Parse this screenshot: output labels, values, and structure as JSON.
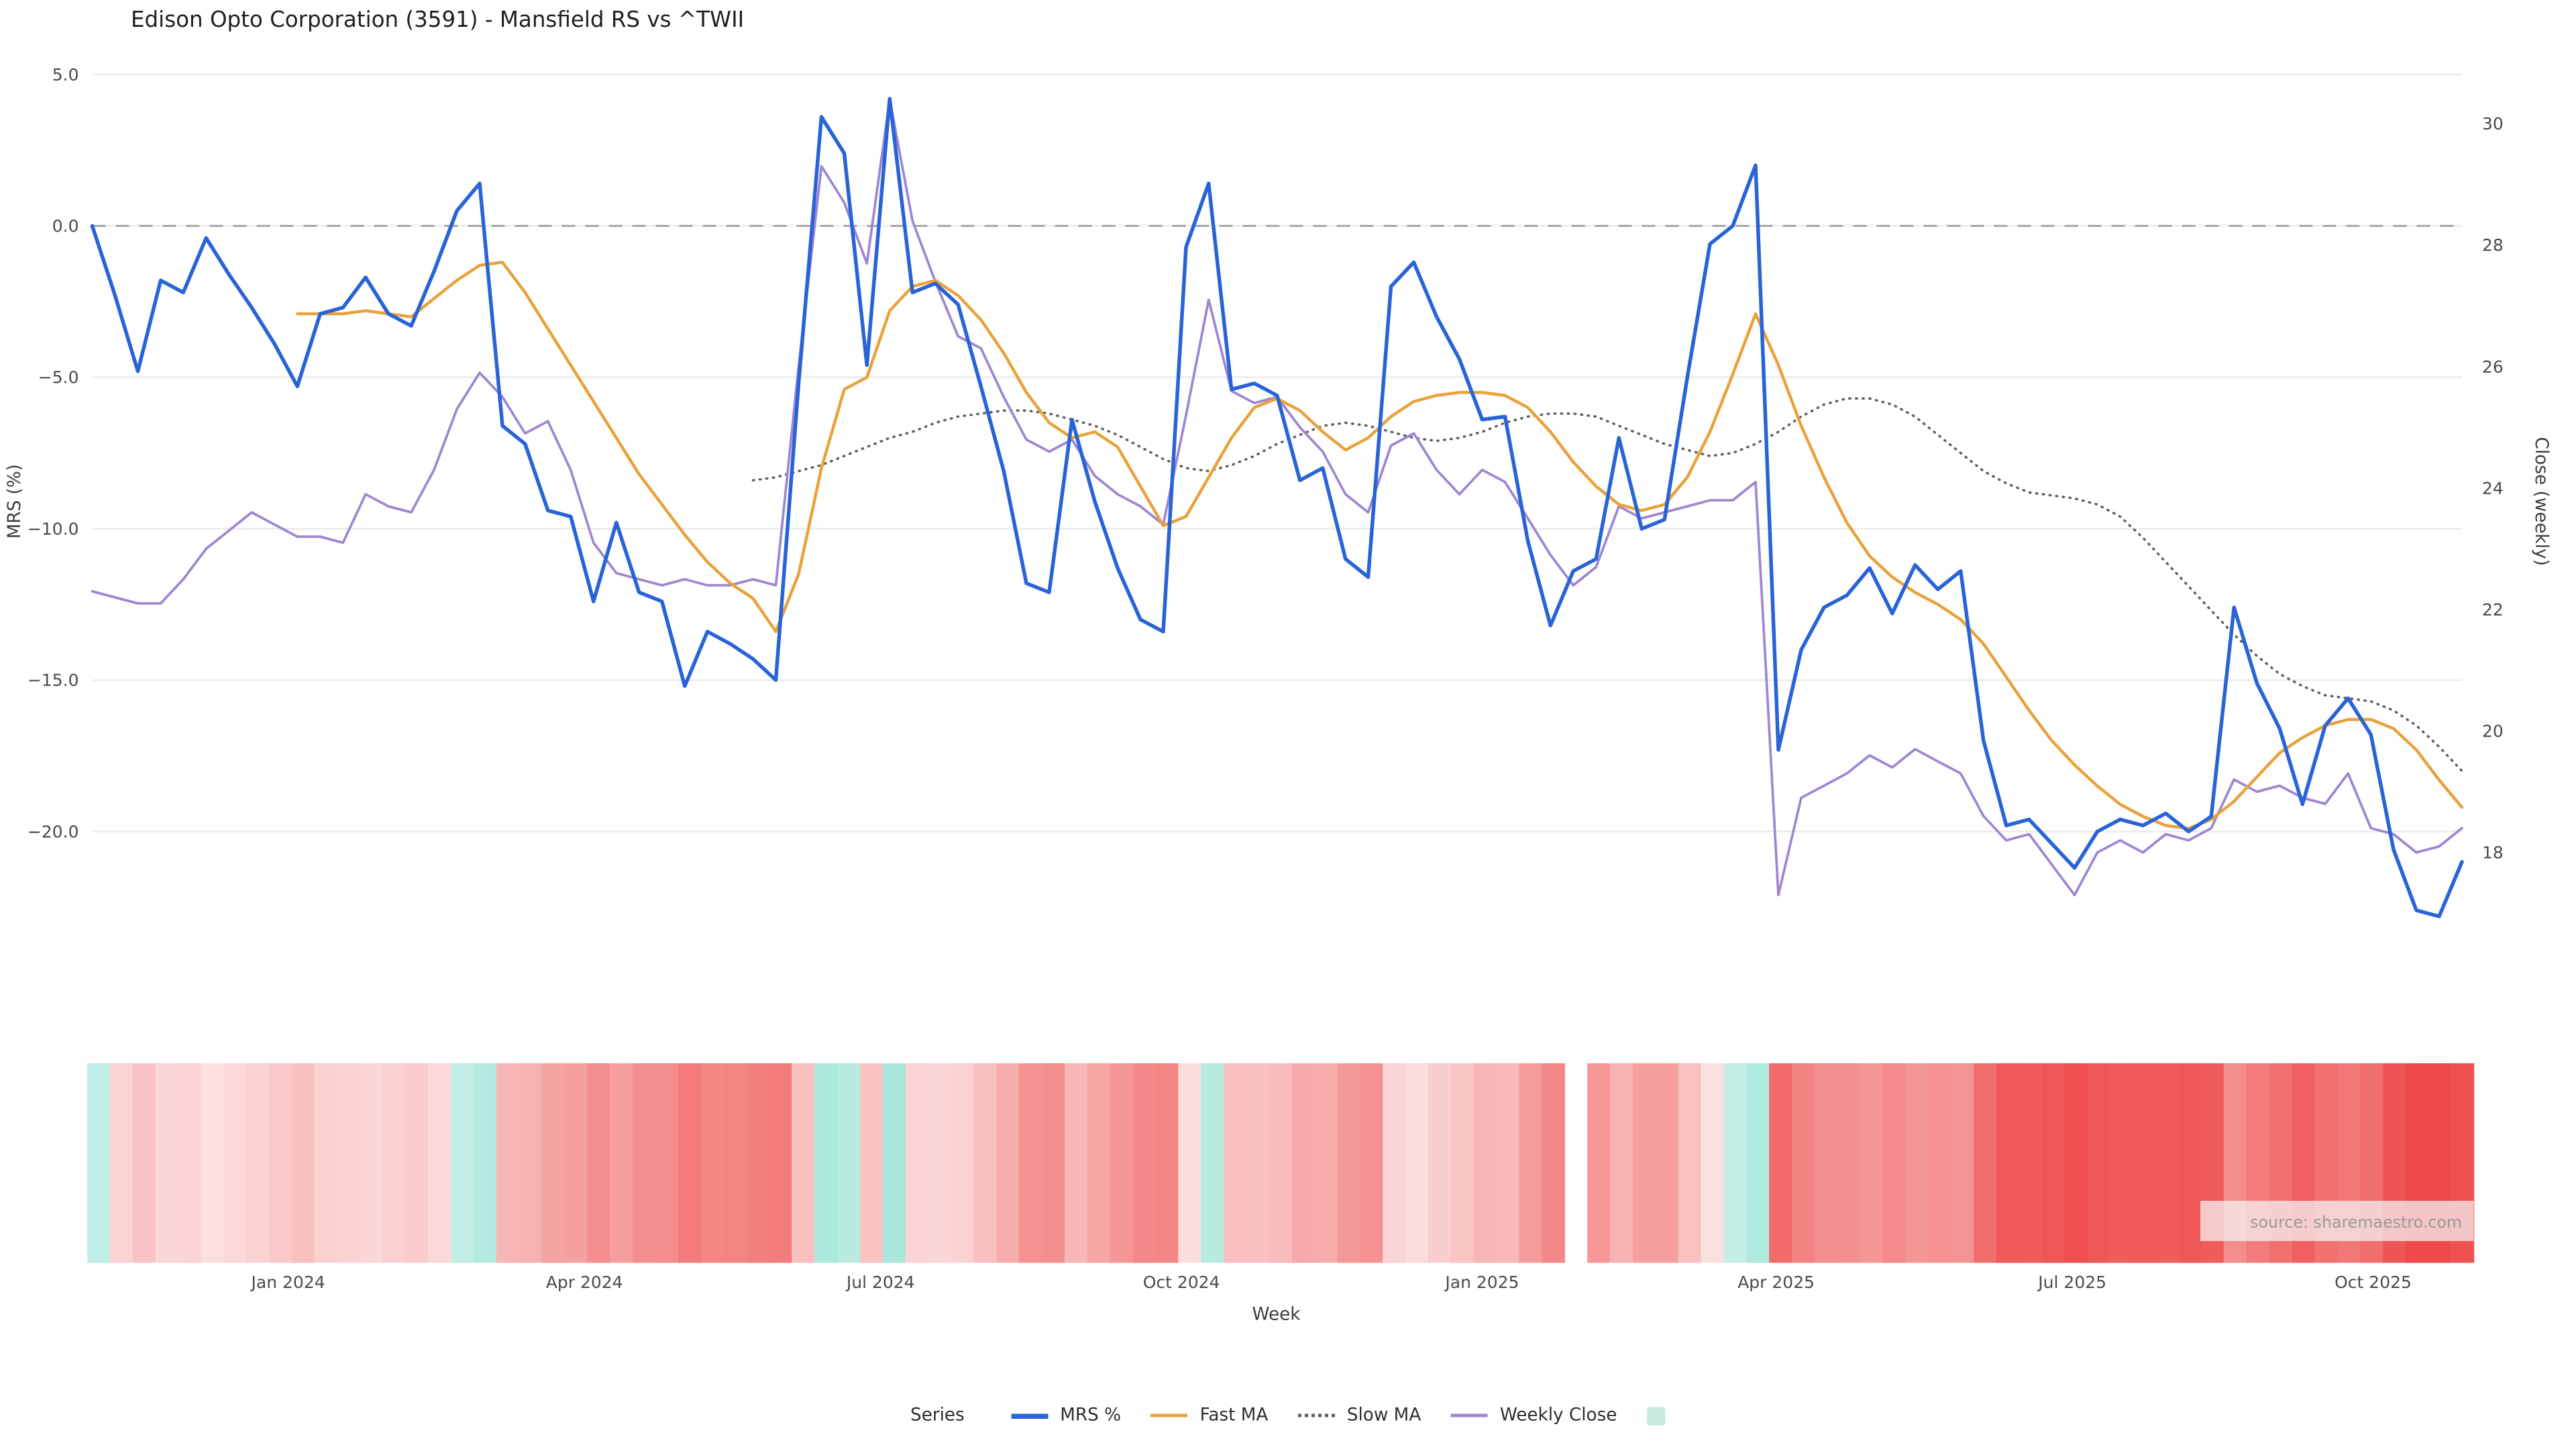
{
  "title": "Edison Opto Corporation (3591) - Mansfield RS vs ^TWII",
  "source_text": "source: sharemaestro.com",
  "axes": {
    "y_left": {
      "label": "MRS (%)",
      "ticks": [
        {
          "label": "5.0",
          "value": 5.0
        },
        {
          "label": "0.0",
          "value": 0.0
        },
        {
          "label": "−5.0",
          "value": -5.0
        },
        {
          "label": "−10.0",
          "value": -10.0
        },
        {
          "label": "−15.0",
          "value": -15.0
        },
        {
          "label": "−20.0",
          "value": -20.0
        }
      ]
    },
    "y_right": {
      "label": "Close (weekly)",
      "ticks": [
        {
          "label": "30",
          "value": 30
        },
        {
          "label": "28",
          "value": 28
        },
        {
          "label": "26",
          "value": 26
        },
        {
          "label": "24",
          "value": 24
        },
        {
          "label": "22",
          "value": 22
        },
        {
          "label": "20",
          "value": 20
        },
        {
          "label": "18",
          "value": 18
        }
      ]
    },
    "x": {
      "label": "Week",
      "ticks": [
        {
          "label": "Jan 2024",
          "week": 8.6
        },
        {
          "label": "Apr 2024",
          "week": 21.6
        },
        {
          "label": "Jul 2024",
          "week": 34.6
        },
        {
          "label": "Oct 2024",
          "week": 47.8
        },
        {
          "label": "Jan 2025",
          "week": 61.0
        },
        {
          "label": "Apr 2025",
          "week": 73.9
        },
        {
          "label": "Jul 2025",
          "week": 86.9
        },
        {
          "label": "Oct 2025",
          "week": 100.1
        }
      ]
    }
  },
  "legend": {
    "title": "Series",
    "items": [
      {
        "label": "MRS %",
        "style": "solid",
        "color": "#2963d8"
      },
      {
        "label": "Fast MA",
        "style": "solid",
        "color": "#e9a23b"
      },
      {
        "label": "Slow MA",
        "style": "dotted",
        "color": "#5f5f5f"
      },
      {
        "label": "Weekly Close",
        "style": "solid",
        "color": "#9f86d2"
      },
      {
        "label": "",
        "style": "swatch",
        "color": "#c7ebe0"
      }
    ]
  },
  "colors": {
    "grid": "#ebebeb",
    "zero_line": "#9e9e9e",
    "heat_red": "#ee4a4a",
    "heat_teal": "#63d4bd",
    "tick_text": "#4a4a4a",
    "axis_title_text": "#3d3d3d",
    "title_text": "#1f1f1f",
    "source_text_color": "#9a9a9a"
  },
  "chart_data": {
    "type": "line",
    "x_unit": "week-index",
    "xlim": [
      0,
      104
    ],
    "ylim_left": [
      -23.5,
      5.3
    ],
    "ylim_right": [
      16.6,
      30.96
    ],
    "zero_line": 0,
    "grid": true,
    "legend_position": "bottom-center",
    "series": [
      {
        "name": "MRS %",
        "axis": "left",
        "color": "#2963d8",
        "style": "solid",
        "width": 2.2,
        "values": [
          0.0,
          -2.3,
          -4.8,
          -1.8,
          -2.2,
          -0.4,
          -1.6,
          -2.7,
          -3.9,
          -5.3,
          -2.9,
          -2.7,
          -1.7,
          -2.9,
          -3.3,
          -1.5,
          0.5,
          1.4,
          -6.6,
          -7.2,
          -9.4,
          -9.6,
          -12.4,
          -9.8,
          -12.1,
          -12.4,
          -15.2,
          -13.4,
          -13.8,
          -14.3,
          -15.0,
          -5.2,
          3.6,
          2.4,
          -4.6,
          4.2,
          -2.2,
          -1.9,
          -2.6,
          -5.3,
          -8.1,
          -11.8,
          -12.1,
          -6.4,
          -9.1,
          -11.3,
          -13.0,
          -13.4,
          -0.7,
          1.4,
          -5.4,
          -5.2,
          -5.6,
          -8.4,
          -8.0,
          -11.0,
          -11.6,
          -2.0,
          -1.2,
          -3.0,
          -4.4,
          -6.4,
          -6.3,
          -10.4,
          -13.2,
          -11.4,
          -11.0,
          -7.0,
          -10.0,
          -9.7,
          -5.0,
          -0.6,
          0.0,
          2.0,
          -17.3,
          -14.0,
          -12.6,
          -12.2,
          -11.3,
          -12.8,
          -11.2,
          -12.0,
          -11.4,
          -17.0,
          -19.8,
          -19.6,
          -20.4,
          -21.2,
          -20.0,
          -19.6,
          -19.8,
          -19.4,
          -20.0,
          -19.5,
          -12.6,
          -15.1,
          -16.6,
          -19.1,
          -16.5,
          -15.6,
          -16.8,
          -20.6,
          -22.6,
          -22.8,
          -21.0
        ]
      },
      {
        "name": "Fast MA",
        "axis": "left",
        "color": "#e9a23b",
        "style": "solid",
        "width": 1.8,
        "values": [
          null,
          null,
          null,
          null,
          null,
          null,
          null,
          null,
          null,
          -2.9,
          -2.9,
          -2.9,
          -2.8,
          -2.9,
          -3.0,
          -2.4,
          -1.8,
          -1.3,
          -1.2,
          -2.2,
          -3.4,
          -4.6,
          -5.8,
          -7.0,
          -8.2,
          -9.2,
          -10.2,
          -11.1,
          -11.8,
          -12.3,
          -13.4,
          -11.5,
          -8.0,
          -5.4,
          -5.0,
          -2.8,
          -2.0,
          -1.8,
          -2.3,
          -3.1,
          -4.2,
          -5.5,
          -6.5,
          -7.0,
          -6.8,
          -7.3,
          -8.6,
          -9.9,
          -9.6,
          -8.3,
          -7.0,
          -6.0,
          -5.7,
          -6.1,
          -6.8,
          -7.4,
          -7.0,
          -6.3,
          -5.8,
          -5.6,
          -5.5,
          -5.5,
          -5.6,
          -6.0,
          -6.8,
          -7.8,
          -8.6,
          -9.2,
          -9.4,
          -9.2,
          -8.3,
          -6.8,
          -4.9,
          -2.9,
          -4.6,
          -6.6,
          -8.3,
          -9.8,
          -10.9,
          -11.6,
          -12.1,
          -12.5,
          -13.0,
          -13.8,
          -14.9,
          -16.0,
          -17.0,
          -17.8,
          -18.5,
          -19.1,
          -19.5,
          -19.8,
          -19.9,
          -19.6,
          -19.0,
          -18.2,
          -17.4,
          -16.9,
          -16.5,
          -16.3,
          -16.3,
          -16.6,
          -17.3,
          -18.3,
          -19.2
        ]
      },
      {
        "name": "Slow MA",
        "axis": "left",
        "color": "#5f5f5f",
        "style": "dotted",
        "width": 1.4,
        "values": [
          null,
          null,
          null,
          null,
          null,
          null,
          null,
          null,
          null,
          null,
          null,
          null,
          null,
          null,
          null,
          null,
          null,
          null,
          null,
          null,
          null,
          null,
          null,
          null,
          null,
          null,
          null,
          null,
          null,
          -8.4,
          -8.3,
          -8.1,
          -7.9,
          -7.6,
          -7.3,
          -7.0,
          -6.8,
          -6.5,
          -6.3,
          -6.2,
          -6.1,
          -6.1,
          -6.2,
          -6.4,
          -6.6,
          -6.9,
          -7.3,
          -7.7,
          -8.0,
          -8.1,
          -7.9,
          -7.6,
          -7.2,
          -6.9,
          -6.6,
          -6.5,
          -6.6,
          -6.8,
          -7.0,
          -7.1,
          -7.0,
          -6.8,
          -6.5,
          -6.3,
          -6.2,
          -6.2,
          -6.3,
          -6.6,
          -6.9,
          -7.2,
          -7.4,
          -7.6,
          -7.5,
          -7.2,
          -6.8,
          -6.3,
          -5.9,
          -5.7,
          -5.7,
          -5.9,
          -6.3,
          -6.9,
          -7.5,
          -8.1,
          -8.5,
          -8.8,
          -8.9,
          -9.0,
          -9.2,
          -9.6,
          -10.3,
          -11.1,
          -11.9,
          -12.7,
          -13.5,
          -14.2,
          -14.8,
          -15.2,
          -15.5,
          -15.6,
          -15.7,
          -16.0,
          -16.5,
          -17.2,
          -18.0
        ]
      },
      {
        "name": "Weekly Close",
        "axis": "right",
        "color": "#9f86d2",
        "style": "solid",
        "width": 1.5,
        "values": [
          22.3,
          22.2,
          22.1,
          22.1,
          22.5,
          23.0,
          23.3,
          23.6,
          23.4,
          23.2,
          23.2,
          23.1,
          23.9,
          23.7,
          23.6,
          24.3,
          25.3,
          25.9,
          25.5,
          24.9,
          25.1,
          24.3,
          23.1,
          22.6,
          22.5,
          22.4,
          22.5,
          22.4,
          22.4,
          22.5,
          22.4,
          26.0,
          29.3,
          28.7,
          27.7,
          30.4,
          28.4,
          27.4,
          26.5,
          26.3,
          25.5,
          24.8,
          24.6,
          24.8,
          24.2,
          23.9,
          23.7,
          23.4,
          25.2,
          27.1,
          25.6,
          25.4,
          25.5,
          25.0,
          24.6,
          23.9,
          23.6,
          24.7,
          24.9,
          24.3,
          23.9,
          24.3,
          24.1,
          23.5,
          22.9,
          22.4,
          22.7,
          23.7,
          23.5,
          23.6,
          23.7,
          23.8,
          23.8,
          24.1,
          17.3,
          18.9,
          19.1,
          19.3,
          19.6,
          19.4,
          19.7,
          19.5,
          19.3,
          18.6,
          18.2,
          18.3,
          17.8,
          17.3,
          18.0,
          18.2,
          18.0,
          18.3,
          18.2,
          18.4,
          19.2,
          19.0,
          19.1,
          18.9,
          18.8,
          19.3,
          18.4,
          18.3,
          18.0,
          18.1,
          18.4
        ]
      }
    ],
    "heatmap": {
      "description": "weekly signal strip under chart; positive=red intensity, negative=teal intensity, null=gap",
      "red": "#ee4a4a",
      "teal": "#63d4bd",
      "values": [
        -0.4,
        0.24,
        0.33,
        0.22,
        0.23,
        0.17,
        0.21,
        0.25,
        0.3,
        0.35,
        0.26,
        0.25,
        0.22,
        0.26,
        0.28,
        0.21,
        -0.4,
        -0.48,
        0.4,
        0.43,
        0.51,
        0.52,
        0.63,
        0.53,
        0.62,
        0.63,
        0.73,
        0.67,
        0.68,
        0.7,
        0.73,
        0.35,
        -0.52,
        -0.45,
        0.33,
        -0.55,
        0.23,
        0.22,
        0.25,
        0.35,
        0.46,
        0.6,
        0.62,
        0.4,
        0.5,
        0.58,
        0.65,
        0.67,
        0.18,
        -0.45,
        0.36,
        0.35,
        0.37,
        0.47,
        0.46,
        0.57,
        0.6,
        0.23,
        0.2,
        0.27,
        0.32,
        0.4,
        0.39,
        0.55,
        0.66,
        null,
        0.57,
        0.42,
        0.53,
        0.53,
        0.34,
        0.17,
        -0.38,
        -0.5,
        0.82,
        0.69,
        0.63,
        0.62,
        0.58,
        0.64,
        0.58,
        0.61,
        0.59,
        0.8,
        0.91,
        0.9,
        0.93,
        0.97,
        0.92,
        0.9,
        0.91,
        0.9,
        0.92,
        0.9,
        0.63,
        0.73,
        0.79,
        0.88,
        0.78,
        0.75,
        0.8,
        0.94,
        1.0,
        1.0,
        0.96
      ]
    }
  }
}
